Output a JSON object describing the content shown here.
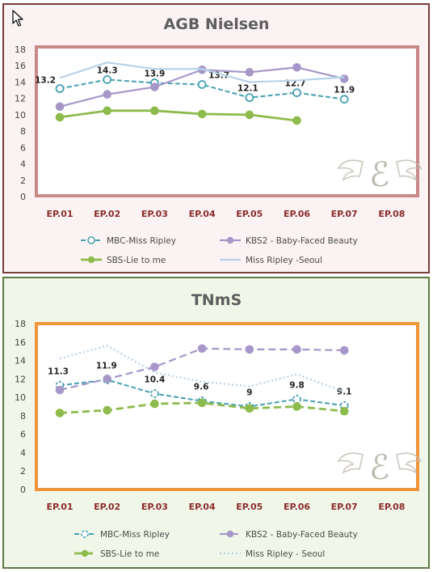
{
  "categories": [
    "EP.01",
    "EP.02",
    "EP.03",
    "EP.04",
    "EP.05",
    "EP.06",
    "EP.07",
    "EP.08"
  ],
  "colors": {
    "mbc": "#46a1b1",
    "kbs": "#a797c9",
    "sbs": "#8dbb4c",
    "seoul": "#b8d2ea"
  },
  "chart_data": [
    {
      "type": "line",
      "title": "AGB Nielsen",
      "ylim": [
        0,
        18
      ],
      "yticks": [
        0,
        2,
        4,
        6,
        8,
        10,
        12,
        14,
        16,
        18
      ],
      "categories": [
        "EP.01",
        "EP.02",
        "EP.03",
        "EP.04",
        "EP.05",
        "EP.06",
        "EP.07",
        "EP.08"
      ],
      "legend_position": "bottom",
      "series": [
        {
          "name": "MBC-Miss Ripley",
          "key": "mbc",
          "values": [
            13.2,
            14.3,
            13.9,
            13.7,
            12.1,
            12.7,
            11.9,
            null
          ],
          "labels": [
            "13.2",
            "14.3",
            "13.9",
            "13.7",
            "12.1",
            "12.7",
            "11.9",
            ""
          ]
        },
        {
          "name": "KBS2 - Baby-Faced Beauty",
          "key": "kbs",
          "values": [
            11.0,
            12.5,
            13.4,
            15.5,
            15.2,
            15.8,
            14.4,
            null
          ]
        },
        {
          "name": "SBS-Lie to me",
          "key": "sbs",
          "values": [
            9.7,
            10.5,
            10.5,
            10.1,
            10.0,
            9.3,
            null,
            null
          ]
        },
        {
          "name": "Miss Ripley -Seoul",
          "key": "seoul",
          "values": [
            14.5,
            16.4,
            15.6,
            15.6,
            14.0,
            14.2,
            14.6,
            null
          ]
        }
      ]
    },
    {
      "type": "line",
      "title": "TNmS",
      "ylim": [
        0,
        18
      ],
      "yticks": [
        0,
        2,
        4,
        6,
        8,
        10,
        12,
        14,
        16,
        18
      ],
      "categories": [
        "EP.01",
        "EP.02",
        "EP.03",
        "EP.04",
        "EP.05",
        "EP.06",
        "EP.07",
        "EP.08"
      ],
      "legend_position": "bottom",
      "series": [
        {
          "name": "MBC-Miss Ripley",
          "key": "mbc",
          "values": [
            11.3,
            11.9,
            10.4,
            9.6,
            9.0,
            9.8,
            9.1,
            null
          ],
          "labels": [
            "11.3",
            "11.9",
            "10.4",
            "9.6",
            "9",
            "9.8",
            "9.1",
            ""
          ]
        },
        {
          "name": "KBS2 - Baby-Faced Beauty",
          "key": "kbs",
          "values": [
            10.8,
            12.0,
            13.3,
            15.3,
            15.2,
            15.2,
            15.1,
            null
          ]
        },
        {
          "name": "SBS-Lie to me",
          "key": "sbs",
          "values": [
            8.3,
            8.6,
            9.3,
            9.4,
            8.8,
            9.0,
            8.5,
            null
          ]
        },
        {
          "name": "Miss Ripley - Seoul",
          "key": "seoul",
          "values": [
            14.2,
            15.6,
            12.7,
            11.7,
            11.2,
            12.5,
            10.6,
            null
          ]
        }
      ]
    }
  ]
}
